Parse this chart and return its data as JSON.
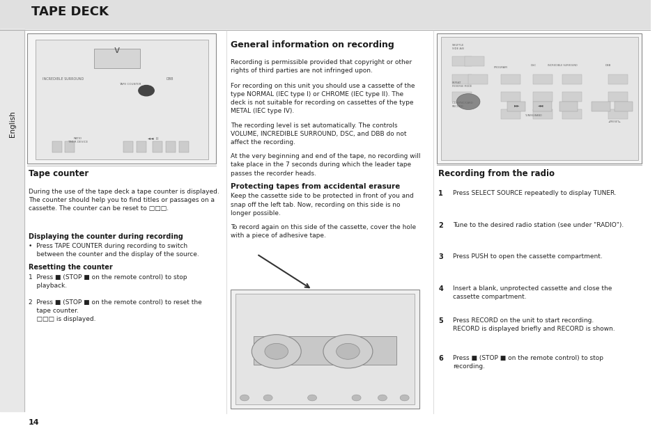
{
  "page_bg": "#ffffff",
  "header_bg": "#e0e0e0",
  "header_text": "TAPE DECK",
  "header_text_color": "#1a1a1a",
  "sidebar_bg": "#e8e8e8",
  "sidebar_text": "English",
  "sidebar_text_color": "#1a1a1a",
  "page_number": "14",
  "sections": {
    "tape_counter": {
      "title": "Tape counter",
      "body1": "During the use of the tape deck a tape counter is displayed.\nThe counter should help you to find titles or passages on a\ncassette. The counter can be reset to □□□.",
      "sub1_title": "Displaying the counter during recording",
      "sub1_body": "•  Press TAPE COUNTER during recording to switch\n    between the counter and the display of the source.",
      "sub2_title": "Resetting the counter",
      "sub2_body1": "1  Press ■ (STOP ■ on the remote control) to stop\n    playback.",
      "sub2_body2": "2  Press ■ (STOP ■ on the remote control) to reset the\n    tape counter.\n    □□□ is displayed."
    },
    "general_info": {
      "title": "General information on recording",
      "body1": "Recording is permissible provided that copyright or other\nrights of third parties are not infringed upon.",
      "body2": "For recording on this unit you should use a cassette of the\ntype NORMAL (IEC type I) or CHROME (IEC type II). The\ndeck is not suitable for recording on cassettes of the type\nMETAL (IEC type IV).",
      "body3": "The recording level is set automatically. The controls\nVOLUME, INCREDIBLE SURROUND, DSC, and DBB do not\naffect the recording.",
      "body4": "At the very beginning and end of the tape, no recording will\ntake place in the 7 seconds during which the leader tape\npasses the recorder heads.",
      "sub1_title": "Protecting tapes from accidental erasure",
      "sub1_body": "Keep the cassette side to be protected in front of you and\nsnap off the left tab. Now, recording on this side is no\nlonger possible.",
      "body5": "To record again on this side of the cassette, cover the hole\nwith a piece of adhesive tape."
    },
    "recording_radio": {
      "title": "Recording from the radio",
      "steps": [
        "Press SELECT SOURCE repeatedly to display TUNER.",
        "Tune to the desired radio station (see under \"RADIO\").",
        "Press PUSH to open the cassette compartment.",
        "Insert a blank, unprotected cassette and close the\ncassette compartment.",
        "Press RECORD on the unit to start recording.\nRECORD is displayed briefly and RECORD is shown.",
        "Press ■ (STOP ■ on the remote control) to stop\nrecording."
      ]
    }
  }
}
